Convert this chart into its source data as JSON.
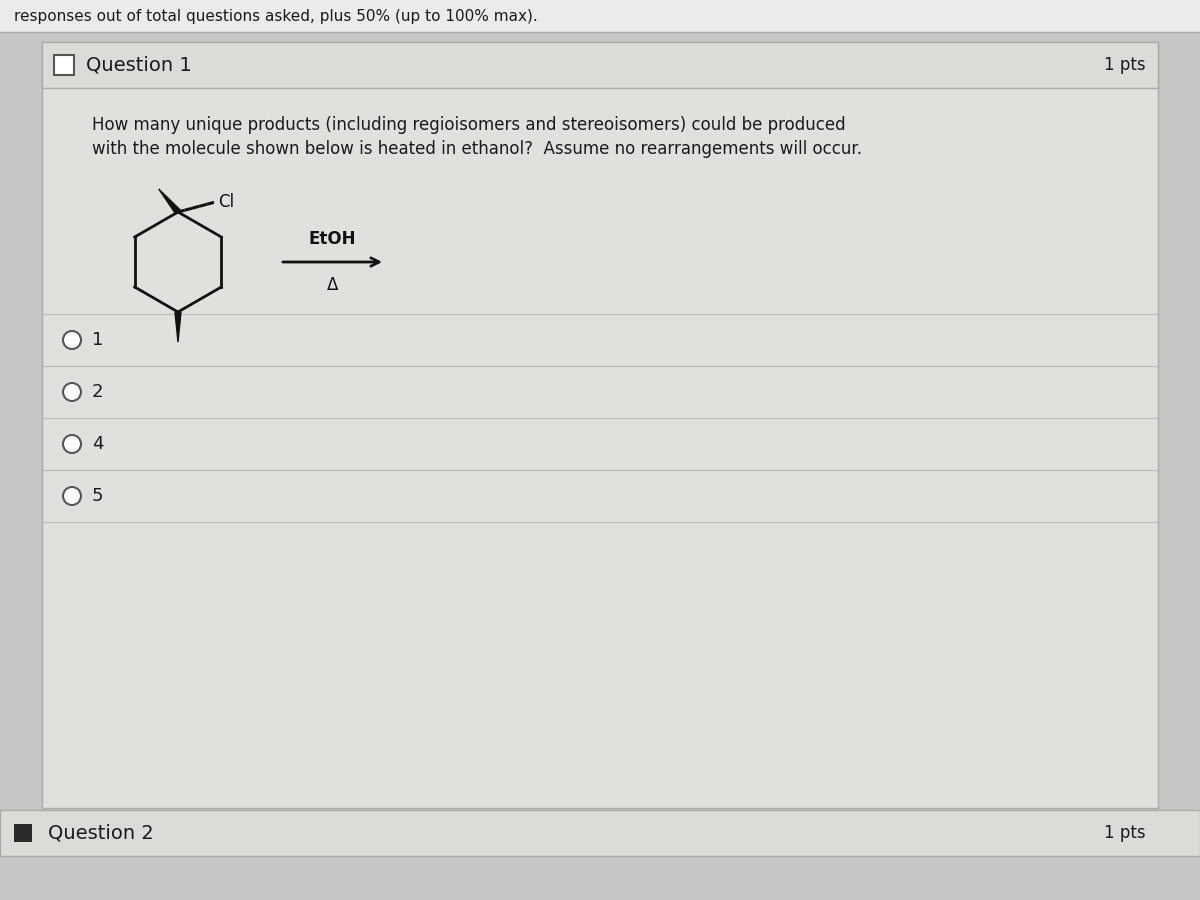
{
  "header_text": "responses out of total questions asked, plus 50% (up to 100% max).",
  "question1_label": "Question 1",
  "question1_pts": "1 pts",
  "question1_body_line1": "How many unique products (including regioisomers and stereoisomers) could be produced",
  "question1_body_line2": "with the molecule shown below is heated in ethanol?  Assume no rearrangements will occur.",
  "reagent_label": "EtOH",
  "heat_label": "Δ",
  "answer_options": [
    "1",
    "2",
    "4",
    "5"
  ],
  "question2_label": "Question 2",
  "question2_pts": "1 pts",
  "bg_color": "#c8c6c4",
  "panel_color": "#e2e0dd",
  "header_bg": "#ebebeb",
  "q1_header_bg": "#dddbd8",
  "border_color": "#999999",
  "text_color": "#1a1a1a",
  "line_color": "#aaaaaa",
  "q2_bar_color": "#dddbd8"
}
